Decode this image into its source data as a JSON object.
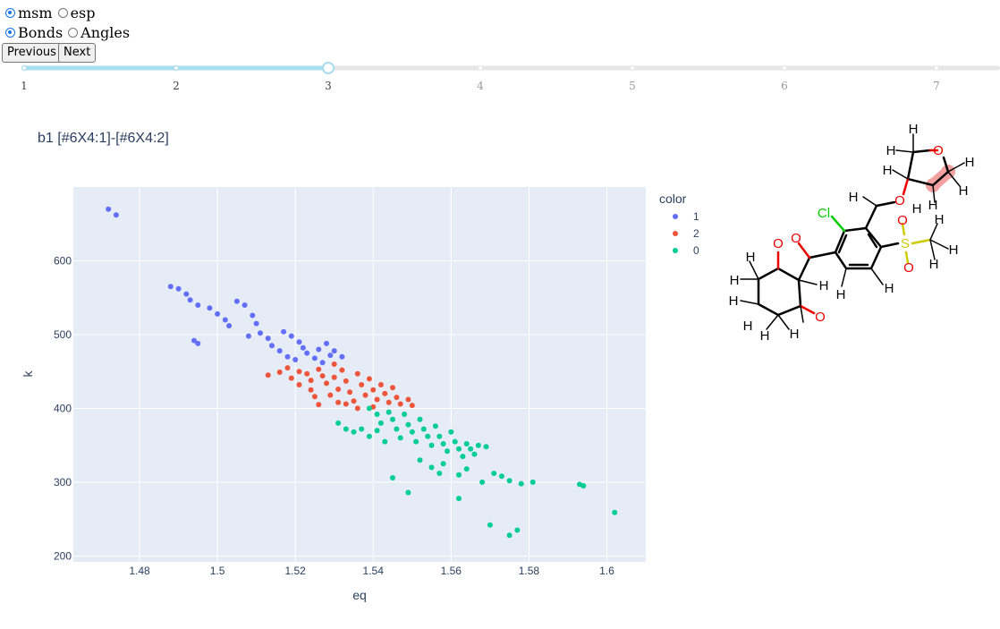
{
  "controls": {
    "source_options": [
      {
        "label": "msm",
        "checked": true
      },
      {
        "label": "esp",
        "checked": false
      }
    ],
    "type_options": [
      {
        "label": "Bonds",
        "checked": true
      },
      {
        "label": "Angles",
        "checked": false
      }
    ],
    "previous_label": "Previous",
    "next_label": "Next"
  },
  "slider": {
    "ticks": [
      "1",
      "2",
      "3",
      "4",
      "5",
      "6",
      "7"
    ],
    "current": "3",
    "accent": "#a8dcef"
  },
  "chart_data": {
    "type": "scatter",
    "title": "b1 [#6X4:1]-[#6X4:2]",
    "xlabel": "eq",
    "ylabel": "k",
    "xlim": [
      1.463,
      1.61
    ],
    "ylim": [
      192,
      700
    ],
    "xticks": [
      "1.48",
      "1.5",
      "1.52",
      "1.54",
      "1.56",
      "1.58",
      "1.6"
    ],
    "yticks": [
      "200",
      "300",
      "400",
      "500",
      "600"
    ],
    "grid": true,
    "legend_title": "color",
    "legend_placement": "top-right",
    "series": [
      {
        "name": "1",
        "color": "#636efa",
        "points": [
          [
            1.472,
            670
          ],
          [
            1.474,
            662
          ],
          [
            1.488,
            565
          ],
          [
            1.49,
            562
          ],
          [
            1.492,
            555
          ],
          [
            1.493,
            547
          ],
          [
            1.495,
            540
          ],
          [
            1.494,
            492
          ],
          [
            1.495,
            488
          ],
          [
            1.498,
            536
          ],
          [
            1.5,
            528
          ],
          [
            1.502,
            520
          ],
          [
            1.503,
            512
          ],
          [
            1.505,
            545
          ],
          [
            1.507,
            540
          ],
          [
            1.509,
            526
          ],
          [
            1.51,
            515
          ],
          [
            1.508,
            498
          ],
          [
            1.511,
            502
          ],
          [
            1.513,
            495
          ],
          [
            1.514,
            485
          ],
          [
            1.516,
            478
          ],
          [
            1.517,
            504
          ],
          [
            1.519,
            498
          ],
          [
            1.521,
            490
          ],
          [
            1.522,
            482
          ],
          [
            1.518,
            470
          ],
          [
            1.52,
            466
          ],
          [
            1.523,
            475
          ],
          [
            1.525,
            468
          ],
          [
            1.527,
            462
          ],
          [
            1.528,
            488
          ],
          [
            1.53,
            478
          ],
          [
            1.532,
            470
          ],
          [
            1.526,
            480
          ],
          [
            1.529,
            472
          ]
        ]
      },
      {
        "name": "2",
        "color": "#ef553b",
        "points": [
          [
            1.513,
            445
          ],
          [
            1.516,
            449
          ],
          [
            1.518,
            455
          ],
          [
            1.519,
            441
          ],
          [
            1.521,
            432
          ],
          [
            1.521,
            450
          ],
          [
            1.523,
            447
          ],
          [
            1.524,
            425
          ],
          [
            1.524,
            438
          ],
          [
            1.525,
            416
          ],
          [
            1.526,
            405
          ],
          [
            1.526,
            453
          ],
          [
            1.527,
            444
          ],
          [
            1.528,
            434
          ],
          [
            1.529,
            418
          ],
          [
            1.53,
            460
          ],
          [
            1.53,
            442
          ],
          [
            1.531,
            426
          ],
          [
            1.531,
            408
          ],
          [
            1.532,
            452
          ],
          [
            1.533,
            437
          ],
          [
            1.534,
            422
          ],
          [
            1.535,
            410
          ],
          [
            1.536,
            447
          ],
          [
            1.537,
            432
          ],
          [
            1.538,
            418
          ],
          [
            1.539,
            440
          ],
          [
            1.54,
            425
          ],
          [
            1.541,
            412
          ],
          [
            1.542,
            432
          ],
          [
            1.543,
            420
          ],
          [
            1.544,
            408
          ],
          [
            1.545,
            428
          ],
          [
            1.546,
            415
          ],
          [
            1.547,
            406
          ],
          [
            1.549,
            412
          ],
          [
            1.55,
            404
          ],
          [
            1.533,
            406
          ],
          [
            1.536,
            400
          ],
          [
            1.54,
            402
          ]
        ]
      },
      {
        "name": "0",
        "color": "#00cc96",
        "points": [
          [
            1.539,
            400
          ],
          [
            1.541,
            392
          ],
          [
            1.542,
            380
          ],
          [
            1.544,
            395
          ],
          [
            1.545,
            385
          ],
          [
            1.546,
            372
          ],
          [
            1.547,
            360
          ],
          [
            1.548,
            392
          ],
          [
            1.549,
            378
          ],
          [
            1.55,
            368
          ],
          [
            1.551,
            355
          ],
          [
            1.552,
            385
          ],
          [
            1.553,
            372
          ],
          [
            1.554,
            362
          ],
          [
            1.555,
            350
          ],
          [
            1.556,
            376
          ],
          [
            1.557,
            362
          ],
          [
            1.558,
            352
          ],
          [
            1.559,
            342
          ],
          [
            1.56,
            368
          ],
          [
            1.561,
            355
          ],
          [
            1.562,
            345
          ],
          [
            1.563,
            335
          ],
          [
            1.564,
            352
          ],
          [
            1.565,
            345
          ],
          [
            1.566,
            338
          ],
          [
            1.567,
            350
          ],
          [
            1.569,
            348
          ],
          [
            1.531,
            380
          ],
          [
            1.533,
            372
          ],
          [
            1.535,
            368
          ],
          [
            1.537,
            372
          ],
          [
            1.539,
            362
          ],
          [
            1.541,
            370
          ],
          [
            1.543,
            355
          ],
          [
            1.552,
            330
          ],
          [
            1.555,
            320
          ],
          [
            1.557,
            312
          ],
          [
            1.558,
            325
          ],
          [
            1.562,
            310
          ],
          [
            1.564,
            318
          ],
          [
            1.568,
            300
          ],
          [
            1.571,
            312
          ],
          [
            1.573,
            308
          ],
          [
            1.575,
            302
          ],
          [
            1.578,
            298
          ],
          [
            1.581,
            300
          ],
          [
            1.545,
            306
          ],
          [
            1.549,
            286
          ],
          [
            1.562,
            278
          ],
          [
            1.57,
            242
          ],
          [
            1.575,
            228
          ],
          [
            1.577,
            235
          ],
          [
            1.593,
            297
          ],
          [
            1.594,
            295
          ],
          [
            1.602,
            259
          ]
        ]
      }
    ]
  }
}
